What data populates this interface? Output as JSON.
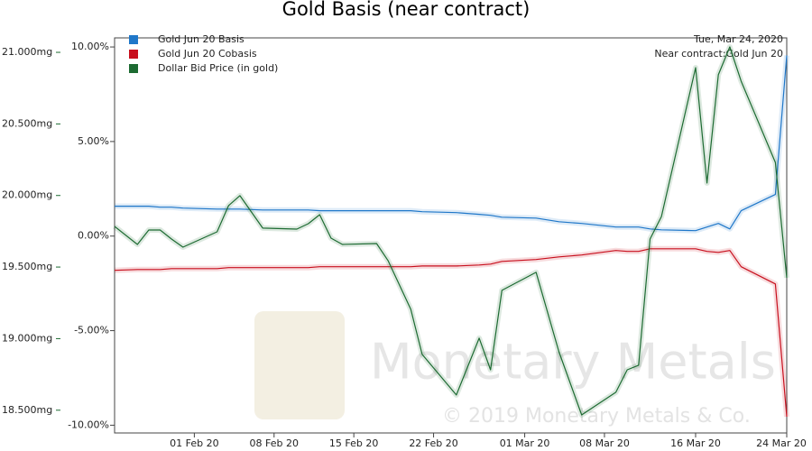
{
  "chart_data": {
    "type": "line",
    "title": "Gold Basis (near contract)",
    "annotations": [
      "Tue, Mar 24, 2020",
      "Near contract:Gold Jun 20"
    ],
    "watermark": [
      "Monetary Metals",
      "© 2019 Monetary Metals & Co."
    ],
    "x": [
      "2020-01-25",
      "2020-01-27",
      "2020-01-28",
      "2020-01-29",
      "2020-01-30",
      "2020-01-31",
      "2020-02-03",
      "2020-02-04",
      "2020-02-05",
      "2020-02-07",
      "2020-02-10",
      "2020-02-11",
      "2020-02-12",
      "2020-02-13",
      "2020-02-14",
      "2020-02-17",
      "2020-02-18",
      "2020-02-20",
      "2020-02-21",
      "2020-02-24",
      "2020-02-26",
      "2020-02-27",
      "2020-02-28",
      "2020-03-02",
      "2020-03-04",
      "2020-03-06",
      "2020-03-09",
      "2020-03-10",
      "2020-03-11",
      "2020-03-12",
      "2020-03-13",
      "2020-03-16",
      "2020-03-17",
      "2020-03-18",
      "2020-03-19",
      "2020-03-20",
      "2020-03-23",
      "2020-03-24"
    ],
    "xlim": [
      "2020-01-25",
      "2020-03-24"
    ],
    "xticks": [
      {
        "value": "2020-02-01",
        "label": "01 Feb 20"
      },
      {
        "value": "2020-02-08",
        "label": "08 Feb 20"
      },
      {
        "value": "2020-02-15",
        "label": "15 Feb 20"
      },
      {
        "value": "2020-02-22",
        "label": "22 Feb 20"
      },
      {
        "value": "2020-03-01",
        "label": "01 Mar 20"
      },
      {
        "value": "2020-03-08",
        "label": "08 Mar 20"
      },
      {
        "value": "2020-03-16",
        "label": "16 Mar 20"
      },
      {
        "value": "2020-03-24",
        "label": "24 Mar 20"
      }
    ],
    "ylim": [
      18.341,
      21.101
    ],
    "yticks": [
      {
        "value": 21.0,
        "label": "21.000mg"
      },
      {
        "value": 20.5,
        "label": "20.500mg"
      },
      {
        "value": 20.0,
        "label": "20.000mg"
      },
      {
        "value": 19.5,
        "label": "19.500mg"
      },
      {
        "value": 19.0,
        "label": "19.000mg"
      },
      {
        "value": 18.5,
        "label": "18.500mg"
      }
    ],
    "y2lim": [
      -10.41,
      10.48
    ],
    "y2ticks": [
      {
        "value": 10,
        "label": "10.00%"
      },
      {
        "value": 5,
        "label": "5.00%"
      },
      {
        "value": 0,
        "label": "0.00%"
      },
      {
        "value": -5,
        "label": "-5.00%"
      },
      {
        "value": -10,
        "label": "-10.00%"
      }
    ],
    "yaxis_color": "#1d6b32",
    "series": [
      {
        "name": "Gold Jun 20 Basis",
        "color": "#1f77c9",
        "axis": "y2",
        "values": [
          1.58,
          1.58,
          1.58,
          1.53,
          1.53,
          1.48,
          1.43,
          1.43,
          1.43,
          1.38,
          1.38,
          1.38,
          1.34,
          1.34,
          1.34,
          1.34,
          1.34,
          1.34,
          1.29,
          1.24,
          1.15,
          1.1,
          1.0,
          0.95,
          0.76,
          0.67,
          0.48,
          0.48,
          0.48,
          0.38,
          0.33,
          0.29,
          0.48,
          0.67,
          0.38,
          1.34,
          2.2,
          9.55
        ]
      },
      {
        "name": "Gold Jun 20 Cobasis",
        "color": "#c8101e",
        "axis": "y2",
        "values": [
          -1.81,
          -1.77,
          -1.77,
          -1.77,
          -1.72,
          -1.72,
          -1.72,
          -1.67,
          -1.67,
          -1.67,
          -1.67,
          -1.67,
          -1.62,
          -1.62,
          -1.62,
          -1.62,
          -1.62,
          -1.62,
          -1.58,
          -1.58,
          -1.53,
          -1.48,
          -1.34,
          -1.24,
          -1.1,
          -1.0,
          -0.76,
          -0.81,
          -0.81,
          -0.67,
          -0.67,
          -0.67,
          -0.81,
          -0.86,
          -0.76,
          -1.62,
          -2.53,
          -9.55
        ]
      },
      {
        "name": "Dollar Bid Price (in gold)",
        "color": "#1d6b32",
        "values": [
          19.784,
          19.658,
          19.759,
          19.759,
          19.696,
          19.639,
          19.746,
          19.929,
          19.999,
          19.772,
          19.765,
          19.803,
          19.866,
          19.702,
          19.658,
          19.664,
          19.545,
          19.205,
          18.89,
          18.606,
          19.003,
          18.782,
          19.337,
          19.463,
          18.908,
          18.467,
          18.625,
          18.782,
          18.814,
          19.696,
          19.853,
          20.893,
          20.087,
          20.843,
          21.038,
          20.798,
          20.231,
          19.425
        ]
      }
    ]
  }
}
